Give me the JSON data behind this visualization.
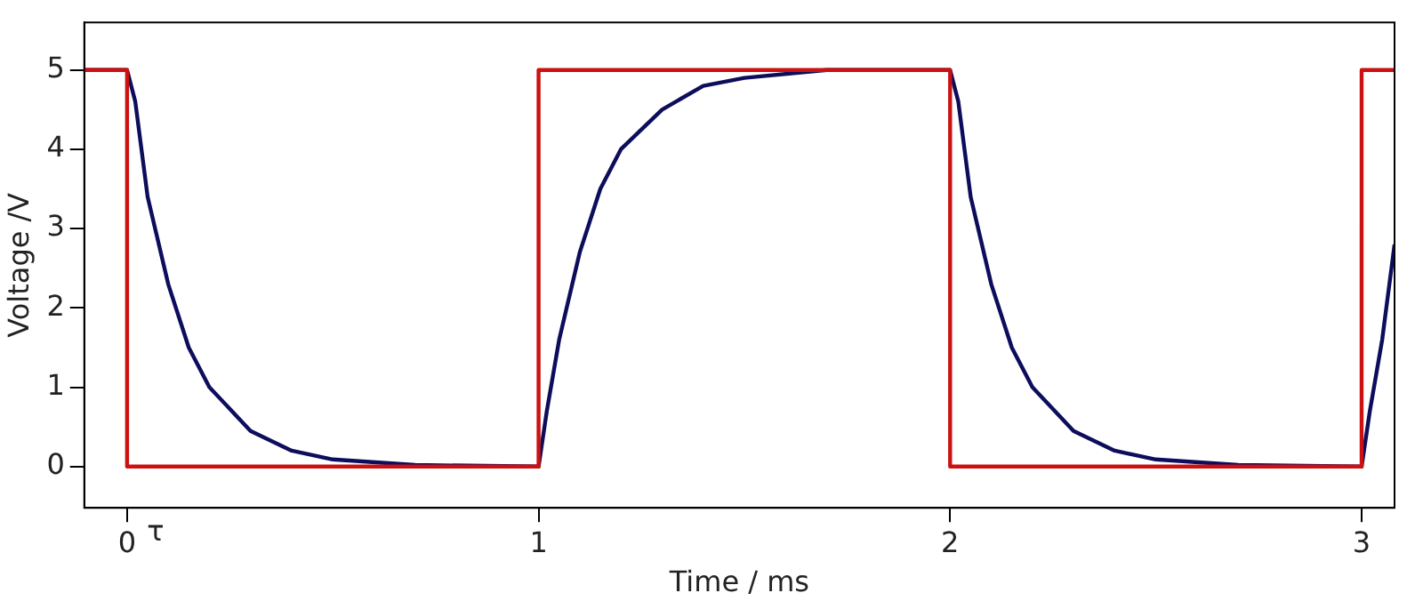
{
  "chart_data": {
    "type": "line",
    "xlabel": "Time / ms",
    "ylabel": "Voltage /V",
    "xlim": [
      -0.104,
      3.08
    ],
    "ylim": [
      -0.52,
      5.6
    ],
    "xticks": [
      0,
      1,
      2,
      3
    ],
    "yticks": [
      0,
      1,
      2,
      3,
      4,
      5
    ],
    "grid": false,
    "legend": false,
    "marker": "none",
    "series": [
      {
        "color": "#cc1111",
        "x": [
          -0.104,
          0,
          0,
          1,
          1,
          2,
          2,
          3,
          3,
          3.08
        ],
        "values": [
          5,
          5,
          0,
          0,
          5,
          5,
          0,
          0,
          5,
          5
        ]
      },
      {
        "color": "#0d0d5c",
        "x": [
          -0.104,
          0,
          0.02,
          0.05,
          0.1,
          0.15,
          0.2,
          0.3,
          0.4,
          0.5,
          0.7,
          1,
          1.02,
          1.05,
          1.1,
          1.15,
          1.2,
          1.3,
          1.4,
          1.5,
          1.7,
          2,
          2.02,
          2.05,
          2.1,
          2.15,
          2.2,
          2.3,
          2.4,
          2.5,
          2.7,
          3,
          3.02,
          3.05,
          3.08
        ],
        "values": [
          5,
          5,
          4.6,
          3.4,
          2.3,
          1.5,
          1,
          0.45,
          0.2,
          0.09,
          0.02,
          0,
          0.7,
          1.6,
          2.7,
          3.5,
          4,
          4.5,
          4.8,
          4.9,
          5,
          5,
          4.6,
          3.4,
          2.3,
          1.5,
          1,
          0.45,
          0.2,
          0.09,
          0.02,
          0,
          0.7,
          1.6,
          2.8
        ]
      }
    ],
    "annotations": [
      "τ"
    ]
  }
}
